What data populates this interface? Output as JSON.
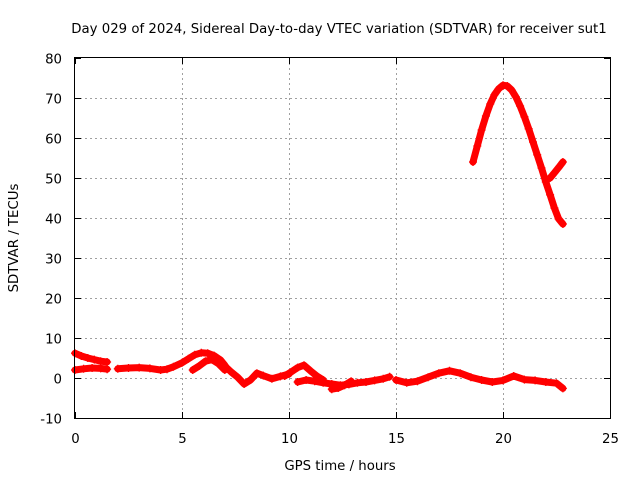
{
  "chart_data": {
    "type": "scatter",
    "title": "Day 029 of 2024, Sidereal Day-to-day VTEC variation (SDTVAR) for receiver sut1",
    "xlabel": "GPS time / hours",
    "ylabel": "SDTVAR / TECUs",
    "xlim": [
      0,
      25
    ],
    "ylim": [
      -10,
      80
    ],
    "xticks": [
      "0",
      "5",
      "10",
      "15",
      "20",
      "25"
    ],
    "yticks": [
      "-10",
      "0",
      "10",
      "20",
      "30",
      "40",
      "50",
      "60",
      "70",
      "80"
    ],
    "grid": true,
    "marker": "plus",
    "color": "#ff0000",
    "series": [
      {
        "name": "s1",
        "x": [
          0.0,
          0.3,
          0.6,
          0.9,
          1.2,
          1.5
        ],
        "y": [
          6.2,
          5.5,
          5.0,
          4.6,
          4.2,
          4.0
        ]
      },
      {
        "name": "s2",
        "x": [
          0.0,
          0.4,
          0.8,
          1.2,
          1.5
        ],
        "y": [
          2.0,
          2.3,
          2.5,
          2.4,
          2.2
        ]
      },
      {
        "name": "s3",
        "x": [
          2.0,
          2.5,
          3.0,
          3.5,
          4.0,
          4.3,
          4.6,
          5.0,
          5.3,
          5.6,
          5.9,
          6.2,
          6.5,
          6.8,
          7.0
        ],
        "y": [
          2.3,
          2.5,
          2.6,
          2.4,
          2.0,
          2.2,
          2.8,
          3.8,
          4.8,
          5.8,
          6.3,
          6.2,
          5.6,
          4.5,
          3.2
        ]
      },
      {
        "name": "s4",
        "x": [
          5.5,
          5.8,
          6.1,
          6.4,
          6.7,
          7.0
        ],
        "y": [
          2.0,
          3.0,
          4.2,
          4.6,
          3.6,
          2.0
        ]
      },
      {
        "name": "s5",
        "x": [
          7.0,
          7.3,
          7.6,
          7.9,
          8.2,
          8.5,
          8.8,
          9.2,
          9.6,
          10.0
        ],
        "y": [
          3.0,
          1.5,
          0.2,
          -1.5,
          -0.5,
          1.2,
          0.6,
          -0.2,
          0.4,
          1.0
        ]
      },
      {
        "name": "s6",
        "x": [
          9.8,
          10.1,
          10.4,
          10.7,
          11.0,
          11.3,
          11.6
        ],
        "y": [
          0.5,
          1.5,
          2.6,
          3.2,
          1.8,
          0.5,
          -0.5
        ]
      },
      {
        "name": "s7",
        "x": [
          10.4,
          10.8,
          11.2,
          11.6,
          12.0,
          12.4,
          12.8,
          13.2,
          13.6,
          14.0,
          14.4,
          14.7
        ],
        "y": [
          -1.0,
          -0.5,
          -0.8,
          -1.2,
          -1.5,
          -1.8,
          -1.6,
          -1.2,
          -1.0,
          -0.6,
          -0.2,
          0.3
        ]
      },
      {
        "name": "s8",
        "x": [
          12.0,
          12.3,
          12.6,
          12.9
        ],
        "y": [
          -2.8,
          -2.5,
          -1.8,
          -0.8
        ]
      },
      {
        "name": "s9",
        "x": [
          15.0,
          15.5,
          16.0,
          16.5,
          17.0,
          17.5,
          18.0,
          18.5,
          19.0,
          19.5,
          20.0,
          20.5,
          21.0,
          21.5,
          22.0,
          22.5,
          22.8
        ],
        "y": [
          -0.5,
          -1.2,
          -0.8,
          0.2,
          1.2,
          1.8,
          1.2,
          0.2,
          -0.5,
          -1.0,
          -0.6,
          0.5,
          -0.4,
          -0.6,
          -1.0,
          -1.3,
          -2.6
        ]
      },
      {
        "name": "s10",
        "x": [
          18.6,
          18.8,
          19.0,
          19.2,
          19.4,
          19.6,
          19.8,
          20.0,
          20.2,
          20.4,
          20.6,
          20.8,
          21.0,
          21.2,
          21.4,
          21.6,
          21.8,
          22.0,
          22.2,
          22.4,
          22.6,
          22.8
        ],
        "y": [
          54.0,
          58.0,
          62.0,
          65.5,
          68.5,
          70.8,
          72.3,
          73.2,
          73.0,
          72.0,
          70.3,
          68.0,
          65.3,
          62.3,
          59.0,
          55.8,
          52.5,
          49.0,
          45.8,
          42.5,
          39.8,
          38.5
        ]
      },
      {
        "name": "s11",
        "x": [
          22.2,
          22.4,
          22.6,
          22.8
        ],
        "y": [
          50.0,
          51.3,
          52.6,
          54.0
        ]
      }
    ]
  }
}
